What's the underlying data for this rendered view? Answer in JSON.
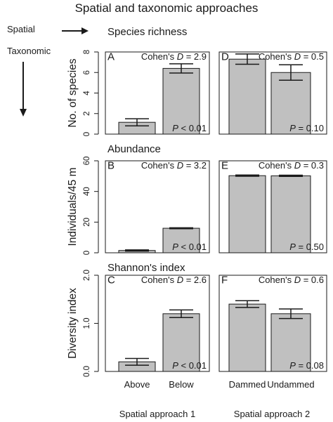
{
  "figure": {
    "title": "Spatial and taxonomic approaches",
    "legend": {
      "spatial": "Spatial",
      "taxonomic": "Taxonomic"
    },
    "xlabels": [
      "Spatial approach 1",
      "Spatial approach 2"
    ]
  },
  "chart_data": [
    {
      "type": "bar",
      "panel": "A",
      "row_title": "Species richness",
      "ylabel": "No. of species",
      "ylim": [
        0,
        8
      ],
      "yticks": [
        0,
        2,
        4,
        6,
        8
      ],
      "categories": [
        "Above",
        "Below"
      ],
      "values": [
        1.15,
        6.4
      ],
      "errors": [
        0.35,
        0.45
      ],
      "effect_prefix": "Cohen's ",
      "effect_var": "D",
      "effect_value": " = 2.9",
      "p_var": "P",
      "p_value": " < 0.01"
    },
    {
      "type": "bar",
      "panel": "D",
      "row_title": "",
      "ylabel": "",
      "ylim": [
        0,
        8
      ],
      "categories": [
        "Dammed",
        "Undammed"
      ],
      "values": [
        7.3,
        6.0
      ],
      "errors": [
        0.5,
        0.75
      ],
      "effect_prefix": "Cohen's ",
      "effect_var": "D",
      "effect_value": " = 0.5",
      "p_var": "P",
      "p_value": " = 0.10"
    },
    {
      "type": "bar",
      "panel": "B",
      "row_title": "Abundance",
      "ylabel": "Individuals/45 m",
      "ylim": [
        0,
        60
      ],
      "yticks": [
        0,
        20,
        40,
        60
      ],
      "categories": [
        "Above",
        "Below"
      ],
      "values": [
        1.5,
        16
      ],
      "errors": [
        0.4,
        0.3
      ],
      "effect_prefix": "Cohen's ",
      "effect_var": "D",
      "effect_value": " = 3.2",
      "p_var": "P",
      "p_value": " < 0.01"
    },
    {
      "type": "bar",
      "panel": "E",
      "row_title": "",
      "ylabel": "",
      "ylim": [
        0,
        60
      ],
      "categories": [
        "Dammed",
        "Undammed"
      ],
      "values": [
        50.3,
        50.2
      ],
      "errors": [
        0.4,
        0.4
      ],
      "effect_prefix": "Cohen's ",
      "effect_var": "D",
      "effect_value": " = 0.3",
      "p_var": "P",
      "p_value": " = 0.50"
    },
    {
      "type": "bar",
      "panel": "C",
      "row_title": "Shannon's index",
      "ylabel": "Diversity index",
      "ylim": [
        0,
        2
      ],
      "yticks": [
        0.0,
        1.0,
        2.0
      ],
      "yticklabels": [
        "0.0",
        "1.0",
        "2.0"
      ],
      "categories": [
        "Above",
        "Below"
      ],
      "values": [
        0.2,
        1.2
      ],
      "errors": [
        0.07,
        0.08
      ],
      "effect_prefix": "Cohen's ",
      "effect_var": "D",
      "effect_value": " = 2.6",
      "p_var": "P",
      "p_value": " < 0.01"
    },
    {
      "type": "bar",
      "panel": "F",
      "row_title": "",
      "ylabel": "",
      "ylim": [
        0,
        2
      ],
      "categories": [
        "Dammed",
        "Undammed"
      ],
      "values": [
        1.4,
        1.2
      ],
      "errors": [
        0.07,
        0.1
      ],
      "effect_prefix": "Cohen's ",
      "effect_var": "D",
      "effect_value": " = 0.6",
      "p_var": "P",
      "p_value": " = 0.08"
    }
  ]
}
